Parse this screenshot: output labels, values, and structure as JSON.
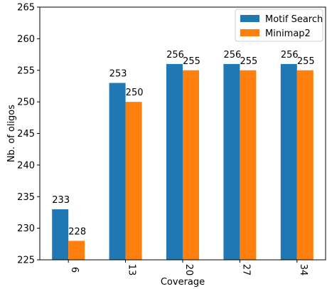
{
  "chart_data": {
    "type": "bar",
    "xlabel": "Coverage",
    "ylabel": "Nb. of oligos",
    "categories": [
      "6",
      "13",
      "20",
      "27",
      "34"
    ],
    "ylim": [
      225,
      265
    ],
    "yticks": [
      225,
      230,
      235,
      240,
      245,
      250,
      255,
      260,
      265
    ],
    "grid": false,
    "legend_position": "top-right",
    "series": [
      {
        "name": "Motif Search",
        "color": "#1f77b4",
        "values": [
          233,
          253,
          256,
          256,
          256
        ]
      },
      {
        "name": "Minimap2",
        "color": "#ff7f0e",
        "values": [
          228,
          250,
          255,
          255,
          255
        ]
      }
    ]
  }
}
